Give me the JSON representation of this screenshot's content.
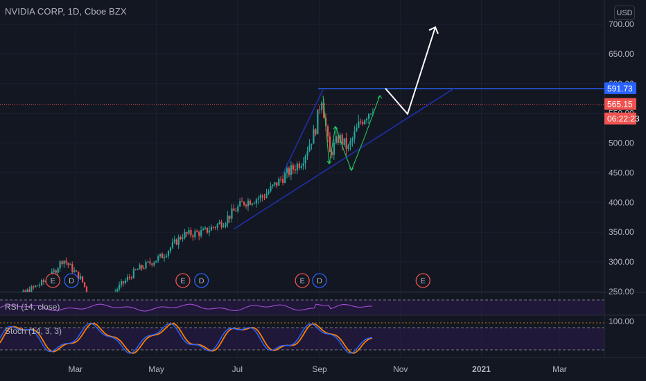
{
  "header": {
    "title": "NVIDIA CORP, 1D, Cboe BZX",
    "currency_button": "USD"
  },
  "colors": {
    "background": "#131722",
    "grid": "#1c2030",
    "axis_text": "#b2b5be",
    "candle_up": "#26a69a",
    "candle_down": "#ef5350",
    "resistance_line": "#2962ff",
    "trend_line": "#1f2fa8",
    "pattern_lines": "#22c55e",
    "projection_lines": "#ffffff",
    "rsi_line": "#a64dd6",
    "stoch_k": "#2962ff",
    "stoch_d": "#ff8000",
    "indicator_band": "#2a1a4a",
    "event_earnings": "#ef5350",
    "event_dividend": "#2962ff"
  },
  "price_tags": {
    "resistance": "591.73",
    "last": "565.15",
    "countdown": "06:22:23"
  },
  "indicators": {
    "rsi_label": "RSI (14, close)",
    "stoch_label": "Stoch (14, 3, 3)",
    "stoch_scale_label": "100.00"
  },
  "chart_data": {
    "type": "candlestick",
    "title": "NVIDIA CORP, 1D, Cboe BZX",
    "ylim": [
      230,
      720
    ],
    "y_ticks": [
      "700.00",
      "650.00",
      "600.00",
      "550.00",
      "500.00",
      "450.00",
      "400.00",
      "350.00",
      "300.00",
      "250.00"
    ],
    "x_ticks": [
      "Mar",
      "May",
      "Jul",
      "Sep",
      "Nov",
      "2021",
      "Mar"
    ],
    "grid": true,
    "last_price": 565.15,
    "resistance_price": 591.73,
    "events": [
      {
        "type": "earnings",
        "label": "E",
        "date": "2020-02-13"
      },
      {
        "type": "dividend",
        "label": "D",
        "date": "2020-02-27"
      },
      {
        "type": "earnings",
        "label": "E",
        "date": "2020-05-21"
      },
      {
        "type": "dividend",
        "label": "D",
        "date": "2020-06-04"
      },
      {
        "type": "earnings",
        "label": "E",
        "date": "2020-08-19"
      },
      {
        "type": "dividend",
        "label": "D",
        "date": "2020-09-01"
      },
      {
        "type": "earnings",
        "label": "E",
        "date": "2020-11-18"
      }
    ],
    "price_path": [
      [
        "2020-01-02",
        238
      ],
      [
        "2020-01-20",
        245
      ],
      [
        "2020-02-10",
        272
      ],
      [
        "2020-02-20",
        305
      ],
      [
        "2020-03-05",
        270
      ],
      [
        "2020-03-18",
        205
      ],
      [
        "2020-04-01",
        255
      ],
      [
        "2020-04-15",
        285
      ],
      [
        "2020-05-05",
        310
      ],
      [
        "2020-05-20",
        345
      ],
      [
        "2020-06-05",
        350
      ],
      [
        "2020-06-20",
        368
      ],
      [
        "2020-07-05",
        400
      ],
      [
        "2020-07-20",
        410
      ],
      [
        "2020-08-05",
        445
      ],
      [
        "2020-08-18",
        470
      ],
      [
        "2020-08-28",
        520
      ],
      [
        "2020-09-02",
        580
      ],
      [
        "2020-09-08",
        480
      ],
      [
        "2020-09-15",
        510
      ],
      [
        "2020-09-22",
        490
      ],
      [
        "2020-10-01",
        535
      ],
      [
        "2020-10-12",
        565
      ]
    ]
  }
}
